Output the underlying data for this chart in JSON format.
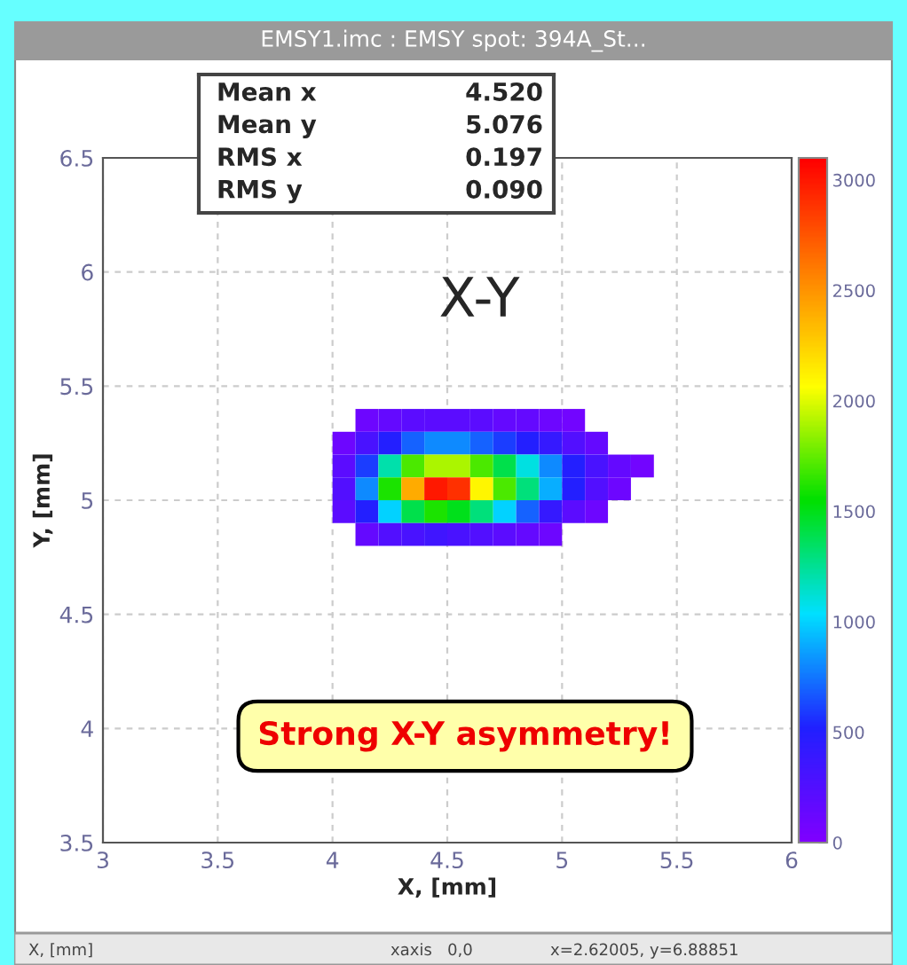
{
  "chart_data": {
    "type": "heatmap",
    "title": "EMSY1.imc : EMSY spot: 394A_St...",
    "xlabel": "X, [mm]",
    "ylabel": "Y, [mm]",
    "x": [
      4.05,
      4.15,
      4.25,
      4.35,
      4.45,
      4.55,
      4.65,
      4.75,
      4.85,
      4.95,
      5.05,
      5.15,
      5.25,
      5.35
    ],
    "y": [
      5.35,
      5.25,
      5.15,
      5.05,
      4.95,
      4.85
    ],
    "cells": [
      [
        null,
        100,
        150,
        200,
        200,
        200,
        200,
        150,
        150,
        100,
        80,
        null,
        null,
        null
      ],
      [
        100,
        300,
        500,
        700,
        800,
        800,
        700,
        600,
        500,
        400,
        250,
        150,
        null,
        null
      ],
      [
        200,
        600,
        1200,
        1700,
        1900,
        1900,
        1700,
        1400,
        1100,
        800,
        500,
        300,
        150,
        80
      ],
      [
        250,
        800,
        1600,
        2400,
        3000,
        2900,
        2100,
        1700,
        1300,
        900,
        500,
        250,
        100,
        null
      ],
      [
        200,
        500,
        1000,
        1400,
        1600,
        1500,
        1300,
        1000,
        700,
        400,
        200,
        100,
        null,
        null
      ],
      [
        null,
        150,
        250,
        300,
        350,
        300,
        250,
        200,
        150,
        100,
        null,
        null,
        null,
        null
      ]
    ],
    "colors": [
      "#7f00ff",
      "#2020ff",
      "#00e0ff",
      "#00e000",
      "#ffff00",
      "#ff8000",
      "#ff0000"
    ],
    "xlim": [
      3,
      6
    ],
    "ylim": [
      3.5,
      6.5
    ],
    "xticks": [
      3,
      3.5,
      4,
      4.5,
      5,
      5.5,
      6
    ],
    "yticks": [
      3.5,
      4,
      4.5,
      5,
      5.5,
      6,
      6.5
    ],
    "clim": [
      0,
      3100
    ],
    "cticks": [
      0,
      500,
      1000,
      1500,
      2000,
      2500,
      3000
    ],
    "grid": true,
    "annotations": [
      "X-Y",
      "Strong X-Y asymmetry!",
      "Mean x",
      "4.520",
      "Mean y",
      "5.076",
      "RMS x",
      "0.197",
      "RMS y",
      "0.090",
      "X, [mm]",
      "xaxis   0,0",
      "x=2.62005, y=6.88851"
    ]
  }
}
